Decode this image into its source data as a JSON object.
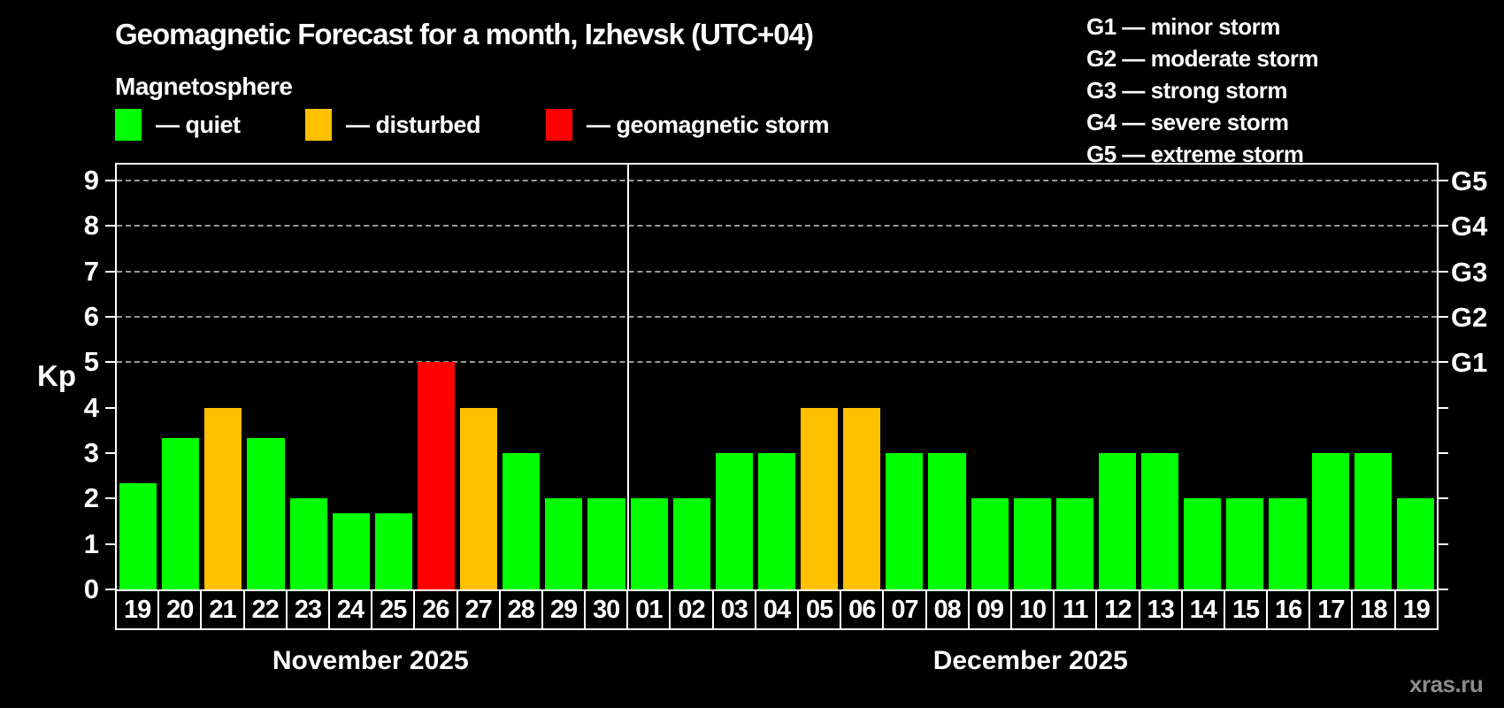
{
  "header": {
    "title": "Geomagnetic Forecast for a month, Izhevsk (UTC+04)",
    "subtitle": "Magnetosphere"
  },
  "legend": {
    "items": [
      {
        "key": "quiet",
        "label": "— quiet",
        "color": "#00ff00",
        "x": 130
      },
      {
        "key": "disturbed",
        "label": "— disturbed",
        "color": "#ffc000",
        "x": 345
      },
      {
        "key": "storm",
        "label": "— geomagnetic storm",
        "color": "#ff0000",
        "x": 617
      }
    ]
  },
  "storm_scale_legend": {
    "lines": [
      "G1 — minor storm",
      "G2 — moderate storm",
      "G3 — strong storm",
      "G4 — severe storm",
      "G5 — extreme storm"
    ]
  },
  "watermark": "xras.ru",
  "chart_data": {
    "type": "bar",
    "title": "Geomagnetic Forecast for a month, Izhevsk (UTC+04)",
    "ylabel": "Kp",
    "ylim": [
      0,
      9.35
    ],
    "yticks": [
      0,
      1,
      2,
      3,
      4,
      5,
      6,
      7,
      8,
      9
    ],
    "gridlines_at": [
      5,
      6,
      7,
      8,
      9
    ],
    "grid_style": "dashed",
    "legend_position": "top",
    "right_axis_labels": [
      {
        "kp": 5,
        "label": "G1"
      },
      {
        "kp": 6,
        "label": "G2"
      },
      {
        "kp": 7,
        "label": "G3"
      },
      {
        "kp": 8,
        "label": "G4"
      },
      {
        "kp": 9,
        "label": "G5"
      }
    ],
    "colors": {
      "quiet": "#00ff00",
      "disturbed": "#ffc000",
      "storm": "#ff0000"
    },
    "months": [
      {
        "label": "November 2025",
        "days": [
          {
            "day": "19",
            "kp": 2.33,
            "state": "quiet"
          },
          {
            "day": "20",
            "kp": 3.33,
            "state": "quiet"
          },
          {
            "day": "21",
            "kp": 4,
            "state": "disturbed"
          },
          {
            "day": "22",
            "kp": 3.33,
            "state": "quiet"
          },
          {
            "day": "23",
            "kp": 2,
            "state": "quiet"
          },
          {
            "day": "24",
            "kp": 1.67,
            "state": "quiet"
          },
          {
            "day": "25",
            "kp": 1.67,
            "state": "quiet"
          },
          {
            "day": "26",
            "kp": 5,
            "state": "storm"
          },
          {
            "day": "27",
            "kp": 4,
            "state": "disturbed"
          },
          {
            "day": "28",
            "kp": 3,
            "state": "quiet"
          },
          {
            "day": "29",
            "kp": 2,
            "state": "quiet"
          },
          {
            "day": "30",
            "kp": 2,
            "state": "quiet"
          }
        ]
      },
      {
        "label": "December 2025",
        "days": [
          {
            "day": "01",
            "kp": 2,
            "state": "quiet"
          },
          {
            "day": "02",
            "kp": 2,
            "state": "quiet"
          },
          {
            "day": "03",
            "kp": 3,
            "state": "quiet"
          },
          {
            "day": "04",
            "kp": 3,
            "state": "quiet"
          },
          {
            "day": "05",
            "kp": 4,
            "state": "disturbed"
          },
          {
            "day": "06",
            "kp": 4,
            "state": "disturbed"
          },
          {
            "day": "07",
            "kp": 3,
            "state": "quiet"
          },
          {
            "day": "08",
            "kp": 3,
            "state": "quiet"
          },
          {
            "day": "09",
            "kp": 2,
            "state": "quiet"
          },
          {
            "day": "10",
            "kp": 2,
            "state": "quiet"
          },
          {
            "day": "11",
            "kp": 2,
            "state": "quiet"
          },
          {
            "day": "12",
            "kp": 3,
            "state": "quiet"
          },
          {
            "day": "13",
            "kp": 3,
            "state": "quiet"
          },
          {
            "day": "14",
            "kp": 2,
            "state": "quiet"
          },
          {
            "day": "15",
            "kp": 2,
            "state": "quiet"
          },
          {
            "day": "16",
            "kp": 2,
            "state": "quiet"
          },
          {
            "day": "17",
            "kp": 3,
            "state": "quiet"
          },
          {
            "day": "18",
            "kp": 3,
            "state": "quiet"
          },
          {
            "day": "19",
            "kp": 2,
            "state": "quiet"
          }
        ]
      }
    ]
  }
}
